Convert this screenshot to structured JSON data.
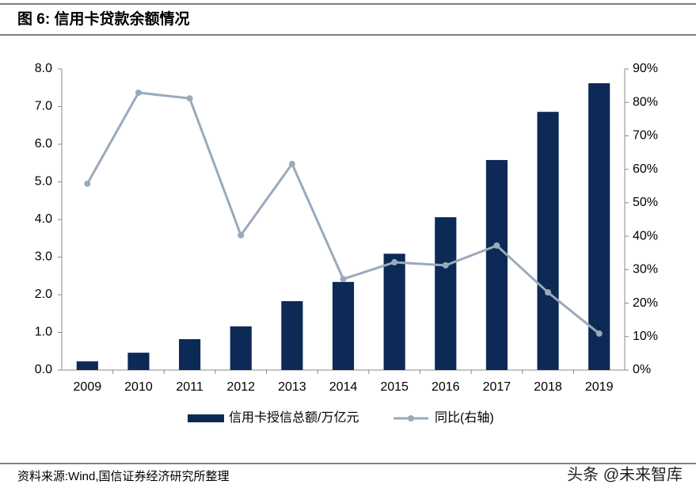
{
  "chart_data": {
    "type": "bar",
    "title": "图 6:  信用卡贷款余额情况",
    "source": "资料来源:Wind,国信证券经济研究所整理",
    "watermark": "头条 @未来智库",
    "categories": [
      "2009",
      "2010",
      "2011",
      "2012",
      "2013",
      "2014",
      "2015",
      "2016",
      "2017",
      "2018",
      "2019"
    ],
    "series": [
      {
        "name": "信用卡授信总额/万亿元",
        "type": "bar",
        "color": "#0c2a55",
        "values": [
          0.23,
          0.46,
          0.82,
          1.16,
          1.83,
          2.34,
          3.09,
          4.06,
          5.58,
          6.86,
          7.62
        ]
      },
      {
        "name": "同比(右轴)",
        "type": "line",
        "axis": "y2",
        "color": "#9aaabb",
        "values": [
          55.7,
          82.9,
          81.2,
          40.3,
          61.6,
          27.2,
          32.2,
          31.3,
          37.2,
          23.2,
          10.9
        ]
      }
    ],
    "ylim": [
      0,
      8
    ],
    "yticks": [
      {
        "value": 0,
        "label": "0.0"
      },
      {
        "value": 1,
        "label": "1.0"
      },
      {
        "value": 2,
        "label": "2.0"
      },
      {
        "value": 3,
        "label": "3.0"
      },
      {
        "value": 4,
        "label": "4.0"
      },
      {
        "value": 5,
        "label": "5.0"
      },
      {
        "value": 6,
        "label": "6.0"
      },
      {
        "value": 7,
        "label": "7.0"
      },
      {
        "value": 8,
        "label": "8.0"
      }
    ],
    "y2lim": [
      0,
      90
    ],
    "y2ticks": [
      {
        "value": 0,
        "label": "0%"
      },
      {
        "value": 10,
        "label": "10%"
      },
      {
        "value": 20,
        "label": "20%"
      },
      {
        "value": 30,
        "label": "30%"
      },
      {
        "value": 40,
        "label": "40%"
      },
      {
        "value": 50,
        "label": "50%"
      },
      {
        "value": 60,
        "label": "60%"
      },
      {
        "value": 70,
        "label": "70%"
      },
      {
        "value": 80,
        "label": "80%"
      },
      {
        "value": 90,
        "label": "90%"
      }
    ],
    "grid": false
  }
}
